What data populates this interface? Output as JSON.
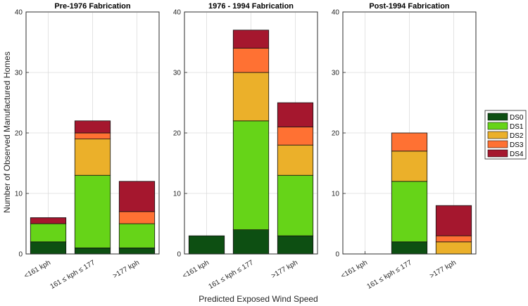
{
  "chart_data": {
    "type": "bar",
    "stacked": true,
    "ylabel": "Number of Observed Manufactured Homes",
    "xlabel": "Predicted Exposed Wind Speed",
    "ylim": [
      0,
      40
    ],
    "yticks": [
      0,
      10,
      20,
      30,
      40
    ],
    "grid": true,
    "categories": [
      "<161 kph",
      "161 ≤ kph ≤ 177",
      ">177 kph"
    ],
    "series_colors": [
      "#0d4f12",
      "#66d418",
      "#ebb02a",
      "#ff7133",
      "#a5172e"
    ],
    "legend": {
      "placement": "right",
      "entries": [
        "DS0",
        "DS1",
        "DS2",
        "DS3",
        "DS4"
      ]
    },
    "panels": [
      {
        "title": "Pre-1976 Fabrication",
        "series": [
          {
            "name": "DS0",
            "values": [
              2,
              1,
              1
            ]
          },
          {
            "name": "DS1",
            "values": [
              3,
              12,
              4
            ]
          },
          {
            "name": "DS2",
            "values": [
              0,
              6,
              0
            ]
          },
          {
            "name": "DS3",
            "values": [
              0,
              1,
              2
            ]
          },
          {
            "name": "DS4",
            "values": [
              1,
              2,
              5
            ]
          }
        ]
      },
      {
        "title": "1976 - 1994 Fabrication",
        "series": [
          {
            "name": "DS0",
            "values": [
              3,
              4,
              3
            ]
          },
          {
            "name": "DS1",
            "values": [
              0,
              18,
              10
            ]
          },
          {
            "name": "DS2",
            "values": [
              0,
              8,
              5
            ]
          },
          {
            "name": "DS3",
            "values": [
              0,
              4,
              3
            ]
          },
          {
            "name": "DS4",
            "values": [
              0,
              3,
              4
            ]
          }
        ]
      },
      {
        "title": "Post-1994 Fabrication",
        "series": [
          {
            "name": "DS0",
            "values": [
              0,
              2,
              0
            ]
          },
          {
            "name": "DS1",
            "values": [
              0,
              10,
              0
            ]
          },
          {
            "name": "DS2",
            "values": [
              0,
              5,
              2
            ]
          },
          {
            "name": "DS3",
            "values": [
              0,
              3,
              1
            ]
          },
          {
            "name": "DS4",
            "values": [
              0,
              0,
              5
            ]
          }
        ]
      }
    ]
  }
}
